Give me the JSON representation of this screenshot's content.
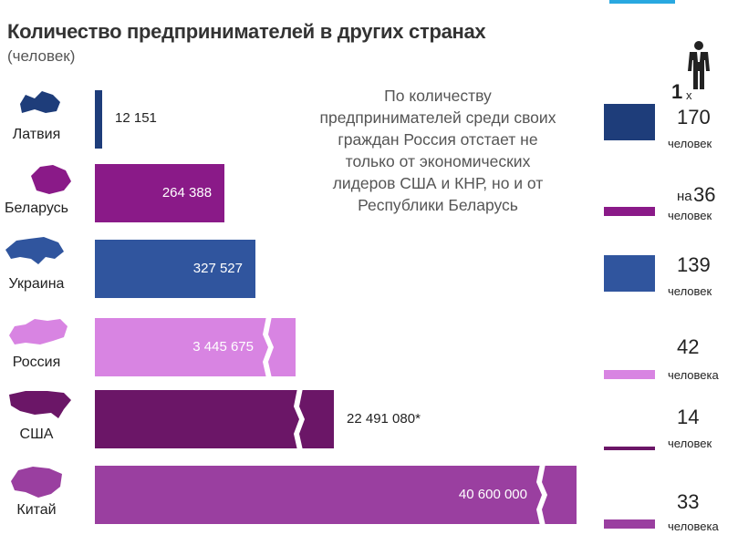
{
  "chart_data": {
    "type": "bar",
    "title": "Количество предпринимателей в других странах",
    "subtitle": "(человек)",
    "categories": [
      "Латвия",
      "Беларусь",
      "Украина",
      "Россия",
      "США",
      "Китай"
    ],
    "values": [
      12151,
      264388,
      327527,
      3445675,
      22491080,
      40600000
    ],
    "value_labels": [
      "12 151",
      "264 388",
      "327 527",
      "3 445 675",
      "22 491 080*",
      "40 600 000"
    ],
    "colors": [
      "#1e3d7a",
      "#8a1a88",
      "#30559e",
      "#d884e2",
      "#6b1667",
      "#9a3fa0"
    ],
    "broken_axis": [
      false,
      false,
      false,
      true,
      true,
      true
    ],
    "note": "По количеству предпринимателей среди своих граждан Россия отстает не только от экономических лидеров США и КНР, но и от Республики Беларусь",
    "ratio_legend": {
      "one": "1",
      "x": "х"
    },
    "ratios": [
      {
        "prefix": "",
        "value": "170",
        "unit": "человек"
      },
      {
        "prefix": "на",
        "value": "36",
        "unit": "человек"
      },
      {
        "prefix": "",
        "value": "139",
        "unit": "человек"
      },
      {
        "prefix": "",
        "value": "42",
        "unit": "человека"
      },
      {
        "prefix": "",
        "value": "14",
        "unit": "человек"
      },
      {
        "prefix": "",
        "value": "33",
        "unit": "человека"
      }
    ]
  }
}
